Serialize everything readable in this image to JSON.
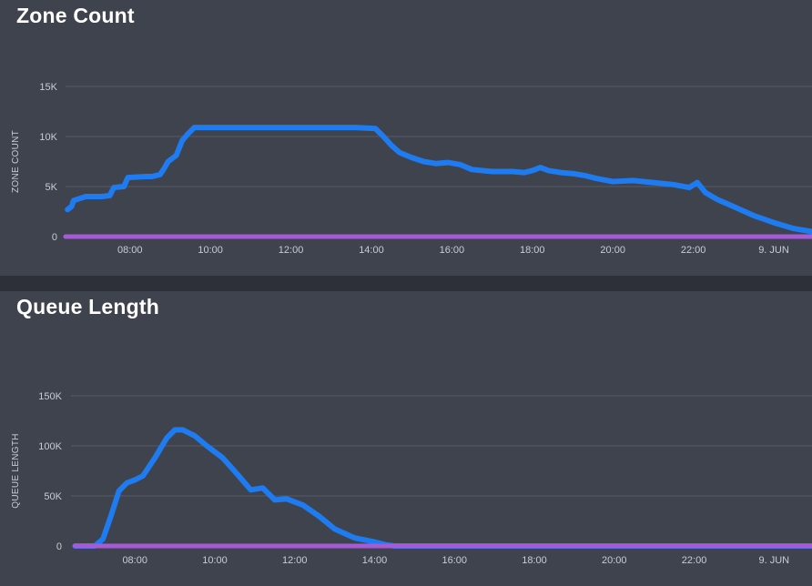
{
  "colors": {
    "background": "#3f434d",
    "series_main": "#1e7bf0",
    "series_zero": "#a65bd6",
    "grid": "#575b66",
    "text": "#c9ccd3"
  },
  "chart_data": [
    {
      "id": "zone",
      "type": "line",
      "title": "Zone Count",
      "ylabel": "ZONE COUNT",
      "xlim": [
        6.4,
        24.95
      ],
      "ylim": [
        0,
        15000
      ],
      "yticks": [
        {
          "value": 0,
          "label": "0"
        },
        {
          "value": 5000,
          "label": "5K"
        },
        {
          "value": 10000,
          "label": "10K"
        },
        {
          "value": 15000,
          "label": "15K"
        }
      ],
      "xticks": [
        {
          "value": 8,
          "label": "08:00"
        },
        {
          "value": 10,
          "label": "10:00"
        },
        {
          "value": 12,
          "label": "12:00"
        },
        {
          "value": 14,
          "label": "14:00"
        },
        {
          "value": 16,
          "label": "16:00"
        },
        {
          "value": 18,
          "label": "18:00"
        },
        {
          "value": 20,
          "label": "20:00"
        },
        {
          "value": 22,
          "label": "22:00"
        },
        {
          "value": 24,
          "label": "9. JUN"
        }
      ],
      "series": [
        {
          "color": "#1e7bf0",
          "x": [
            6.45,
            6.55,
            6.6,
            6.75,
            6.9,
            7.3,
            7.5,
            7.6,
            7.85,
            7.95,
            8.4,
            8.55,
            8.75,
            8.85,
            8.95,
            9.15,
            9.3,
            9.45,
            9.6,
            10.5,
            12,
            13.6,
            14.1,
            14.3,
            14.5,
            14.7,
            15.0,
            15.3,
            15.6,
            15.9,
            16.2,
            16.5,
            17.0,
            17.5,
            17.8,
            18.0,
            18.2,
            18.4,
            18.7,
            19.0,
            19.3,
            19.6,
            20.0,
            20.5,
            21.0,
            21.5,
            21.9,
            22.1,
            22.3,
            22.6,
            23.0,
            23.5,
            24.0,
            24.5,
            24.95
          ],
          "values": [
            2700,
            3000,
            3600,
            3800,
            4000,
            4000,
            4100,
            4900,
            5000,
            5900,
            6000,
            6000,
            6200,
            6800,
            7500,
            8100,
            9600,
            10300,
            10900,
            10900,
            10900,
            10900,
            10800,
            10000,
            9100,
            8400,
            7900,
            7500,
            7300,
            7400,
            7200,
            6700,
            6500,
            6500,
            6400,
            6600,
            6900,
            6600,
            6400,
            6300,
            6100,
            5800,
            5500,
            5600,
            5400,
            5200,
            4900,
            5400,
            4400,
            3700,
            3000,
            2100,
            1400,
            800,
            500
          ]
        },
        {
          "color": "#a65bd6",
          "x": [
            6.4,
            24.95
          ],
          "values": [
            0,
            0
          ]
        }
      ]
    },
    {
      "id": "queue",
      "type": "line",
      "title": "Queue Length",
      "ylabel": "QUEUE LENGTH",
      "xlim": [
        6.4,
        24.95
      ],
      "ylim": [
        0,
        150000
      ],
      "yticks": [
        {
          "value": 0,
          "label": "0"
        },
        {
          "value": 50000,
          "label": "50K"
        },
        {
          "value": 100000,
          "label": "100K"
        },
        {
          "value": 150000,
          "label": "150K"
        }
      ],
      "xticks": [
        {
          "value": 8,
          "label": "08:00"
        },
        {
          "value": 10,
          "label": "10:00"
        },
        {
          "value": 12,
          "label": "12:00"
        },
        {
          "value": 14,
          "label": "14:00"
        },
        {
          "value": 16,
          "label": "16:00"
        },
        {
          "value": 18,
          "label": "18:00"
        },
        {
          "value": 20,
          "label": "20:00"
        },
        {
          "value": 22,
          "label": "22:00"
        },
        {
          "value": 24,
          "label": "9. JUN"
        }
      ],
      "series": [
        {
          "color": "#1e7bf0",
          "x": [
            6.5,
            7.0,
            7.2,
            7.4,
            7.6,
            7.8,
            8.0,
            8.2,
            8.5,
            8.8,
            9.0,
            9.2,
            9.5,
            9.8,
            10.2,
            10.6,
            10.9,
            11.2,
            11.5,
            11.8,
            12.2,
            12.6,
            13.0,
            13.5,
            14.0,
            14.3,
            14.5,
            24.95
          ],
          "values": [
            0,
            0,
            7000,
            30000,
            55000,
            63000,
            66000,
            70000,
            88000,
            108000,
            116000,
            116000,
            110000,
            100000,
            88000,
            70000,
            56000,
            58000,
            46000,
            47000,
            41000,
            30000,
            17000,
            8000,
            4000,
            1000,
            0,
            0
          ]
        },
        {
          "color": "#a65bd6",
          "x": [
            6.5,
            24.95
          ],
          "values": [
            0,
            0
          ]
        }
      ]
    }
  ]
}
